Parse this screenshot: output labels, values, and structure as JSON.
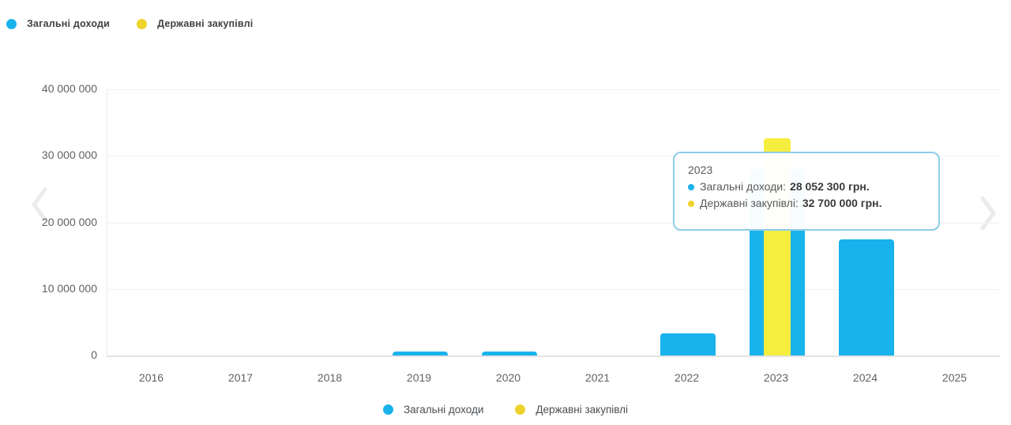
{
  "legend": {
    "items": [
      {
        "label": "Загальні доходи",
        "color": "#18b2ec"
      },
      {
        "label": "Державні закупівлі",
        "color": "#eed32c"
      }
    ]
  },
  "tooltip": {
    "title": "2023",
    "rows": [
      {
        "label": "Загальні доходи:",
        "value": "28 052 300 грн.",
        "color": "#18b2ec"
      },
      {
        "label": "Державні закупівлі:",
        "value": "32 700 000 грн.",
        "color": "#eed32c"
      }
    ]
  },
  "chart_data": {
    "type": "bar",
    "title": "",
    "xlabel": "",
    "ylabel": "",
    "categories": [
      "2016",
      "2017",
      "2018",
      "2019",
      "2020",
      "2021",
      "2022",
      "2023",
      "2024",
      "2025"
    ],
    "series": [
      {
        "name": "Загальні доходи",
        "color": "#18b2ec",
        "values": [
          0,
          0,
          0,
          600000,
          600000,
          0,
          3300000,
          28052300,
          17500000,
          0
        ]
      },
      {
        "name": "Державні закупівлі",
        "color": "#f5ee3f",
        "values": [
          0,
          0,
          0,
          0,
          0,
          0,
          0,
          32700000,
          0,
          0
        ]
      }
    ],
    "ylim": [
      0,
      40000000
    ],
    "yticks": [
      0,
      10000000,
      20000000,
      30000000,
      40000000
    ],
    "ytick_labels": [
      "0",
      "10 000 000",
      "20 000 000",
      "30 000 000",
      "40 000 000"
    ],
    "grid": "horizontal",
    "legend_position": "top and bottom",
    "tooltip_year": "2023",
    "unit": "грн."
  }
}
